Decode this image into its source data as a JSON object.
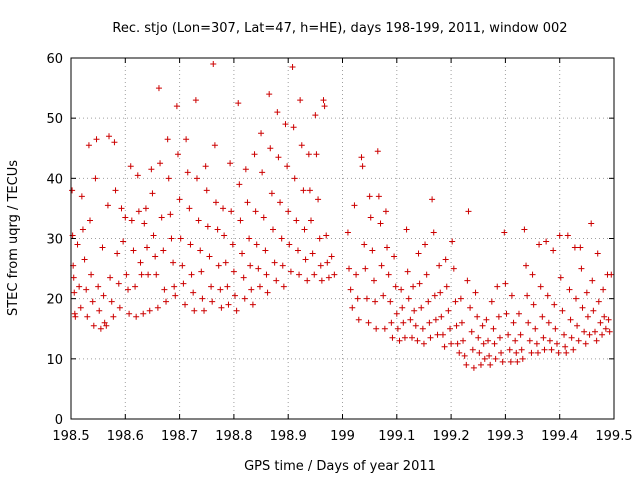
{
  "chart_data": {
    "type": "scatter",
    "title": "Rec. stjo (Lon=307, Lat=47, h=HE), days 198-199, 2011, window 002",
    "xlabel": "GPS time / Days of year 2011",
    "ylabel": "STEC from uqrg / TECUs",
    "xlim": [
      198.5,
      199.5
    ],
    "ylim": [
      0,
      60
    ],
    "xticks": [
      198.5,
      198.6,
      198.7,
      198.8,
      198.9,
      199.0,
      199.1,
      199.2,
      199.3,
      199.4,
      199.5
    ],
    "xtick_labels": [
      "198.5",
      "198.6",
      "198.7",
      "198.8",
      "198.9",
      "199",
      "199.1",
      "199.2",
      "199.3",
      "199.4",
      "199.5"
    ],
    "yticks": [
      0,
      10,
      20,
      30,
      40,
      50,
      60
    ],
    "ytick_labels": [
      "0",
      "10",
      "20",
      "30",
      "40",
      "50",
      "60"
    ],
    "grid": true,
    "marker": "plus",
    "color": "#cc0000",
    "points": [
      [
        198.502,
        38.0
      ],
      [
        198.503,
        30.5
      ],
      [
        198.504,
        25.5
      ],
      [
        198.505,
        23.5
      ],
      [
        198.506,
        21.0
      ],
      [
        198.507,
        17.5
      ],
      [
        198.508,
        17.0
      ],
      [
        198.512,
        29.0
      ],
      [
        198.515,
        22.0
      ],
      [
        198.518,
        18.5
      ],
      [
        198.52,
        37.0
      ],
      [
        198.522,
        31.5
      ],
      [
        198.525,
        26.5
      ],
      [
        198.528,
        21.5
      ],
      [
        198.53,
        17.0
      ],
      [
        198.533,
        45.5
      ],
      [
        198.535,
        33.0
      ],
      [
        198.537,
        24.0
      ],
      [
        198.54,
        19.5
      ],
      [
        198.542,
        15.5
      ],
      [
        198.545,
        40.0
      ],
      [
        198.547,
        46.5
      ],
      [
        198.55,
        22.0
      ],
      [
        198.552,
        18.0
      ],
      [
        198.555,
        15.0
      ],
      [
        198.558,
        28.5
      ],
      [
        198.56,
        20.5
      ],
      [
        198.562,
        16.0
      ],
      [
        198.565,
        15.5
      ],
      [
        198.568,
        35.5
      ],
      [
        198.57,
        47.0
      ],
      [
        198.572,
        23.5
      ],
      [
        198.575,
        19.5
      ],
      [
        198.578,
        17.0
      ],
      [
        198.58,
        46.0
      ],
      [
        198.582,
        38.0
      ],
      [
        198.585,
        27.5
      ],
      [
        198.588,
        22.5
      ],
      [
        198.59,
        18.5
      ],
      [
        198.593,
        35.0
      ],
      [
        198.596,
        29.5
      ],
      [
        198.6,
        33.5
      ],
      [
        198.602,
        24.0
      ],
      [
        198.605,
        21.5
      ],
      [
        198.607,
        17.5
      ],
      [
        198.61,
        42.0
      ],
      [
        198.612,
        33.0
      ],
      [
        198.615,
        28.0
      ],
      [
        198.618,
        22.0
      ],
      [
        198.62,
        17.0
      ],
      [
        198.623,
        40.5
      ],
      [
        198.625,
        34.5
      ],
      [
        198.628,
        26.0
      ],
      [
        198.63,
        24.0
      ],
      [
        198.633,
        17.5
      ],
      [
        198.635,
        32.5
      ],
      [
        198.638,
        35.0
      ],
      [
        198.64,
        28.5
      ],
      [
        198.642,
        24.0
      ],
      [
        198.645,
        18.0
      ],
      [
        198.648,
        41.5
      ],
      [
        198.65,
        37.5
      ],
      [
        198.652,
        30.5
      ],
      [
        198.655,
        27.0
      ],
      [
        198.657,
        24.0
      ],
      [
        198.66,
        18.5
      ],
      [
        198.662,
        55.0
      ],
      [
        198.664,
        42.5
      ],
      [
        198.667,
        33.5
      ],
      [
        198.67,
        28.0
      ],
      [
        198.672,
        21.5
      ],
      [
        198.675,
        19.5
      ],
      [
        198.678,
        46.5
      ],
      [
        198.68,
        40.0
      ],
      [
        198.683,
        34.0
      ],
      [
        198.685,
        30.0
      ],
      [
        198.688,
        26.0
      ],
      [
        198.69,
        22.0
      ],
      [
        198.692,
        20.5
      ],
      [
        198.695,
        52.0
      ],
      [
        198.697,
        44.0
      ],
      [
        198.7,
        36.5
      ],
      [
        198.702,
        30.0
      ],
      [
        198.705,
        25.5
      ],
      [
        198.707,
        22.5
      ],
      [
        198.71,
        19.0
      ],
      [
        198.712,
        46.5
      ],
      [
        198.715,
        41.0
      ],
      [
        198.718,
        35.0
      ],
      [
        198.72,
        29.0
      ],
      [
        198.722,
        24.0
      ],
      [
        198.725,
        21.0
      ],
      [
        198.727,
        18.0
      ],
      [
        198.73,
        53.0
      ],
      [
        198.732,
        40.0
      ],
      [
        198.735,
        33.0
      ],
      [
        198.738,
        28.0
      ],
      [
        198.74,
        24.5
      ],
      [
        198.742,
        20.0
      ],
      [
        198.745,
        18.0
      ],
      [
        198.748,
        42.0
      ],
      [
        198.75,
        38.0
      ],
      [
        198.752,
        32.0
      ],
      [
        198.755,
        27.0
      ],
      [
        198.758,
        22.0
      ],
      [
        198.76,
        19.5
      ],
      [
        198.762,
        59.0
      ],
      [
        198.765,
        45.5
      ],
      [
        198.767,
        36.0
      ],
      [
        198.77,
        31.5
      ],
      [
        198.772,
        25.5
      ],
      [
        198.775,
        21.5
      ],
      [
        198.777,
        18.5
      ],
      [
        198.78,
        35.0
      ],
      [
        198.782,
        30.5
      ],
      [
        198.785,
        26.0
      ],
      [
        198.788,
        22.0
      ],
      [
        198.79,
        19.0
      ],
      [
        198.793,
        42.5
      ],
      [
        198.795,
        34.5
      ],
      [
        198.798,
        29.0
      ],
      [
        198.8,
        24.5
      ],
      [
        198.802,
        20.5
      ],
      [
        198.805,
        18.0
      ],
      [
        198.808,
        52.5
      ],
      [
        198.81,
        39.0
      ],
      [
        198.812,
        33.0
      ],
      [
        198.815,
        27.5
      ],
      [
        198.818,
        23.5
      ],
      [
        198.82,
        20.0
      ],
      [
        198.822,
        41.5
      ],
      [
        198.825,
        36.0
      ],
      [
        198.828,
        30.0
      ],
      [
        198.83,
        25.5
      ],
      [
        198.832,
        21.5
      ],
      [
        198.835,
        19.0
      ],
      [
        198.838,
        44.0
      ],
      [
        198.84,
        34.5
      ],
      [
        198.842,
        29.0
      ],
      [
        198.845,
        25.0
      ],
      [
        198.848,
        22.0
      ],
      [
        198.85,
        47.5
      ],
      [
        198.852,
        41.0
      ],
      [
        198.855,
        33.5
      ],
      [
        198.858,
        28.0
      ],
      [
        198.86,
        24.0
      ],
      [
        198.862,
        21.0
      ],
      [
        198.865,
        54.0
      ],
      [
        198.867,
        45.0
      ],
      [
        198.87,
        37.5
      ],
      [
        198.872,
        31.5
      ],
      [
        198.875,
        26.0
      ],
      [
        198.878,
        23.0
      ],
      [
        198.88,
        51.0
      ],
      [
        198.882,
        43.5
      ],
      [
        198.885,
        36.0
      ],
      [
        198.888,
        30.0
      ],
      [
        198.89,
        25.5
      ],
      [
        198.892,
        22.0
      ],
      [
        198.895,
        49.0
      ],
      [
        198.898,
        42.0
      ],
      [
        198.9,
        34.5
      ],
      [
        198.902,
        29.0
      ],
      [
        198.905,
        24.5
      ],
      [
        198.908,
        58.5
      ],
      [
        198.91,
        48.5
      ],
      [
        198.912,
        40.0
      ],
      [
        198.915,
        33.0
      ],
      [
        198.918,
        28.0
      ],
      [
        198.92,
        24.0
      ],
      [
        198.922,
        53.0
      ],
      [
        198.925,
        45.5
      ],
      [
        198.928,
        38.0
      ],
      [
        198.93,
        31.5
      ],
      [
        198.932,
        26.5
      ],
      [
        198.935,
        23.0
      ],
      [
        198.938,
        44.0
      ],
      [
        198.94,
        38.0
      ],
      [
        198.942,
        33.0
      ],
      [
        198.945,
        27.5
      ],
      [
        198.948,
        24.0
      ],
      [
        198.95,
        50.5
      ],
      [
        198.952,
        44.0
      ],
      [
        198.955,
        36.5
      ],
      [
        198.958,
        30.0
      ],
      [
        198.96,
        25.5
      ],
      [
        198.962,
        23.0
      ],
      [
        198.965,
        53.0
      ],
      [
        198.967,
        52.0
      ],
      [
        198.97,
        30.5
      ],
      [
        198.972,
        26.0
      ],
      [
        198.975,
        23.5
      ],
      [
        198.98,
        27.0
      ],
      [
        198.985,
        24.0
      ],
      [
        199.01,
        31.0
      ],
      [
        199.012,
        25.0
      ],
      [
        199.015,
        21.5
      ],
      [
        199.018,
        18.5
      ],
      [
        199.022,
        35.5
      ],
      [
        199.025,
        24.0
      ],
      [
        199.028,
        20.0
      ],
      [
        199.03,
        16.5
      ],
      [
        199.035,
        43.5
      ],
      [
        199.037,
        42.0
      ],
      [
        199.04,
        29.0
      ],
      [
        199.042,
        25.0
      ],
      [
        199.045,
        20.0
      ],
      [
        199.048,
        16.0
      ],
      [
        199.05,
        37.0
      ],
      [
        199.052,
        33.5
      ],
      [
        199.055,
        28.0
      ],
      [
        199.058,
        23.0
      ],
      [
        199.06,
        19.5
      ],
      [
        199.062,
        15.0
      ],
      [
        199.065,
        44.5
      ],
      [
        199.067,
        37.0
      ],
      [
        199.07,
        32.5
      ],
      [
        199.072,
        25.5
      ],
      [
        199.075,
        20.5
      ],
      [
        199.078,
        15.0
      ],
      [
        199.08,
        34.5
      ],
      [
        199.082,
        28.5
      ],
      [
        199.085,
        24.0
      ],
      [
        199.088,
        19.5
      ],
      [
        199.09,
        16.0
      ],
      [
        199.092,
        13.5
      ],
      [
        199.095,
        27.0
      ],
      [
        199.098,
        22.0
      ],
      [
        199.1,
        17.5
      ],
      [
        199.102,
        15.0
      ],
      [
        199.105,
        13.0
      ],
      [
        199.108,
        21.5
      ],
      [
        199.11,
        18.5
      ],
      [
        199.112,
        16.0
      ],
      [
        199.115,
        13.5
      ],
      [
        199.118,
        31.5
      ],
      [
        199.12,
        24.5
      ],
      [
        199.122,
        20.0
      ],
      [
        199.125,
        16.5
      ],
      [
        199.128,
        13.5
      ],
      [
        199.13,
        22.0
      ],
      [
        199.132,
        18.0
      ],
      [
        199.135,
        15.5
      ],
      [
        199.138,
        13.0
      ],
      [
        199.14,
        27.5
      ],
      [
        199.142,
        22.5
      ],
      [
        199.145,
        18.5
      ],
      [
        199.148,
        15.0
      ],
      [
        199.15,
        12.5
      ],
      [
        199.152,
        29.0
      ],
      [
        199.155,
        24.0
      ],
      [
        199.158,
        19.5
      ],
      [
        199.16,
        16.0
      ],
      [
        199.162,
        13.5
      ],
      [
        199.165,
        36.5
      ],
      [
        199.168,
        31.0
      ],
      [
        199.17,
        20.5
      ],
      [
        199.172,
        16.5
      ],
      [
        199.175,
        14.0
      ],
      [
        199.178,
        25.5
      ],
      [
        199.18,
        21.0
      ],
      [
        199.182,
        17.0
      ],
      [
        199.185,
        14.0
      ],
      [
        199.188,
        12.0
      ],
      [
        199.19,
        26.5
      ],
      [
        199.192,
        22.0
      ],
      [
        199.195,
        18.0
      ],
      [
        199.198,
        15.0
      ],
      [
        199.2,
        12.5
      ],
      [
        199.202,
        29.5
      ],
      [
        199.205,
        25.0
      ],
      [
        199.208,
        19.5
      ],
      [
        199.21,
        15.5
      ],
      [
        199.212,
        12.5
      ],
      [
        199.215,
        11.0
      ],
      [
        199.218,
        20.0
      ],
      [
        199.22,
        16.0
      ],
      [
        199.222,
        13.0
      ],
      [
        199.225,
        10.5
      ],
      [
        199.228,
        9.0
      ],
      [
        199.23,
        23.0
      ],
      [
        199.232,
        34.5
      ],
      [
        199.235,
        18.5
      ],
      [
        199.238,
        14.5
      ],
      [
        199.24,
        11.5
      ],
      [
        199.242,
        8.5
      ],
      [
        199.245,
        21.0
      ],
      [
        199.248,
        17.0
      ],
      [
        199.25,
        13.5
      ],
      [
        199.252,
        11.0
      ],
      [
        199.255,
        9.0
      ],
      [
        199.258,
        15.5
      ],
      [
        199.26,
        12.5
      ],
      [
        199.262,
        10.0
      ],
      [
        199.265,
        16.5
      ],
      [
        199.268,
        13.0
      ],
      [
        199.27,
        10.5
      ],
      [
        199.272,
        9.0
      ],
      [
        199.275,
        19.5
      ],
      [
        199.278,
        15.0
      ],
      [
        199.28,
        12.5
      ],
      [
        199.282,
        10.0
      ],
      [
        199.285,
        22.0
      ],
      [
        199.288,
        17.0
      ],
      [
        199.29,
        13.5
      ],
      [
        199.292,
        11.0
      ],
      [
        199.295,
        9.5
      ],
      [
        199.298,
        31.0
      ],
      [
        199.3,
        22.5
      ],
      [
        199.302,
        17.5
      ],
      [
        199.305,
        14.0
      ],
      [
        199.308,
        11.5
      ],
      [
        199.31,
        9.5
      ],
      [
        199.312,
        20.5
      ],
      [
        199.315,
        16.0
      ],
      [
        199.318,
        13.0
      ],
      [
        199.32,
        11.0
      ],
      [
        199.322,
        9.5
      ],
      [
        199.325,
        17.5
      ],
      [
        199.328,
        14.0
      ],
      [
        199.33,
        11.5
      ],
      [
        199.332,
        10.0
      ],
      [
        199.335,
        31.5
      ],
      [
        199.338,
        25.5
      ],
      [
        199.34,
        20.5
      ],
      [
        199.342,
        16.0
      ],
      [
        199.345,
        13.0
      ],
      [
        199.348,
        11.0
      ],
      [
        199.35,
        24.0
      ],
      [
        199.352,
        19.0
      ],
      [
        199.355,
        15.0
      ],
      [
        199.358,
        12.5
      ],
      [
        199.36,
        11.0
      ],
      [
        199.362,
        29.0
      ],
      [
        199.365,
        22.0
      ],
      [
        199.368,
        17.0
      ],
      [
        199.37,
        13.5
      ],
      [
        199.372,
        11.5
      ],
      [
        199.375,
        29.5
      ],
      [
        199.378,
        20.5
      ],
      [
        199.38,
        16.0
      ],
      [
        199.382,
        13.0
      ],
      [
        199.385,
        11.5
      ],
      [
        199.388,
        28.0
      ],
      [
        199.39,
        19.0
      ],
      [
        199.392,
        15.0
      ],
      [
        199.395,
        12.5
      ],
      [
        199.398,
        11.0
      ],
      [
        199.4,
        30.5
      ],
      [
        199.402,
        23.5
      ],
      [
        199.405,
        18.0
      ],
      [
        199.408,
        14.0
      ],
      [
        199.41,
        12.0
      ],
      [
        199.412,
        11.0
      ],
      [
        199.415,
        30.5
      ],
      [
        199.418,
        21.5
      ],
      [
        199.42,
        16.5
      ],
      [
        199.422,
        13.5
      ],
      [
        199.425,
        11.5
      ],
      [
        199.428,
        28.5
      ],
      [
        199.43,
        20.0
      ],
      [
        199.432,
        15.5
      ],
      [
        199.435,
        13.0
      ],
      [
        199.438,
        28.5
      ],
      [
        199.44,
        25.0
      ],
      [
        199.442,
        18.5
      ],
      [
        199.445,
        14.5
      ],
      [
        199.448,
        12.5
      ],
      [
        199.45,
        21.0
      ],
      [
        199.452,
        17.0
      ],
      [
        199.455,
        14.0
      ],
      [
        199.458,
        32.5
      ],
      [
        199.46,
        23.0
      ],
      [
        199.462,
        18.0
      ],
      [
        199.465,
        14.5
      ],
      [
        199.468,
        13.0
      ],
      [
        199.47,
        27.5
      ],
      [
        199.472,
        19.5
      ],
      [
        199.475,
        16.0
      ],
      [
        199.478,
        14.0
      ],
      [
        199.48,
        21.5
      ],
      [
        199.482,
        17.0
      ],
      [
        199.485,
        15.0
      ],
      [
        199.488,
        24.0
      ],
      [
        199.49,
        16.5
      ],
      [
        199.492,
        14.5
      ],
      [
        199.495,
        24.0
      ]
    ]
  }
}
